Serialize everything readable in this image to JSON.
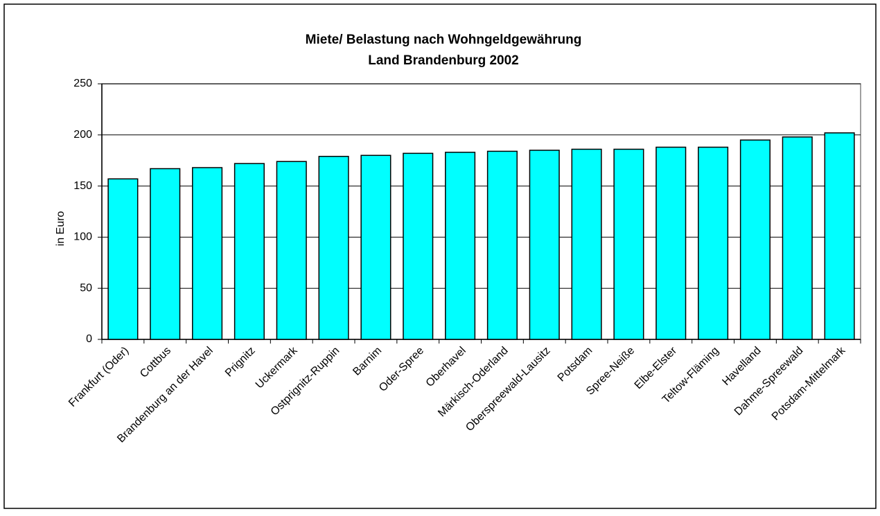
{
  "chart_data": {
    "type": "bar",
    "title": [
      "Miete/ Belastung nach Wohngeldgewährung",
      "Land Brandenburg 2002"
    ],
    "y_label": "in Euro",
    "categories": [
      "Frankfurt (Oder)",
      "Cottbus",
      "Brandenburg an der Havel",
      "Prignitz",
      "Uckermark",
      "Ostprignitz-Ruppin",
      "Barnim",
      "Oder-Spree",
      "Oberhavel",
      "Märkisch-Oderland",
      "Oberspreewald-Lausitz",
      "Potsdam",
      "Spree-Neiße",
      "Elbe-Elster",
      "Teltow-Fläming",
      "Havelland",
      "Dahme-Spreewald",
      "Potsdam-Mittelmark"
    ],
    "values": [
      157,
      167,
      168,
      172,
      174,
      179,
      180,
      182,
      183,
      184,
      185,
      186,
      186,
      188,
      188,
      195,
      198,
      202
    ],
    "color": "#00ffff",
    "ylim": [
      0,
      250
    ],
    "yticks": [
      0,
      50,
      100,
      150,
      200,
      250
    ],
    "grid": true
  }
}
